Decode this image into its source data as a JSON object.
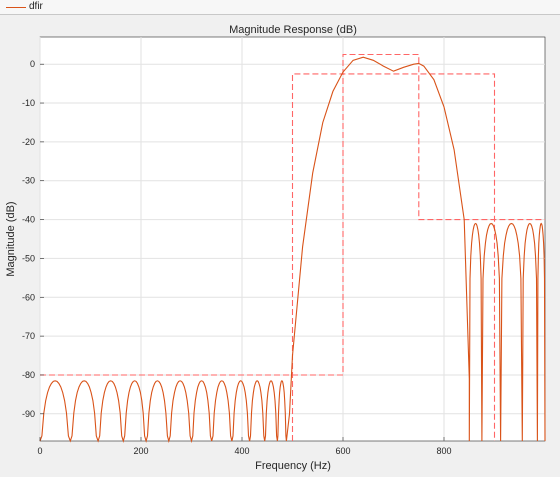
{
  "legend": {
    "entries": [
      {
        "label": "dfir",
        "color": "#d95319"
      }
    ]
  },
  "chart_data": {
    "type": "line",
    "title": "Magnitude Response (dB)",
    "xlabel": "Frequency (Hz)",
    "ylabel": "Magnitude (dB)",
    "xlim": [
      0,
      1000
    ],
    "ylim": [
      -97,
      7
    ],
    "xticks": [
      0,
      200,
      400,
      600,
      800
    ],
    "yticks": [
      0,
      -10,
      -20,
      -30,
      -40,
      -50,
      -60,
      -70,
      -80,
      -90
    ],
    "grid": true,
    "series": [
      {
        "name": "dfir",
        "color": "#d95319",
        "notes": "FIR bandpass magnitude response; stopband ripple ~-82 dB below 500 Hz, passband 600-750 Hz near 0 dB, stopband ~-41 dB above 850 Hz",
        "stopband1_nulls_hz": [
          0,
          60,
          115,
          165,
          210,
          255,
          300,
          340,
          380,
          415,
          445,
          470,
          488
        ],
        "stopband1_peak_db": -81.5,
        "transition_points": [
          [
            494,
            -90
          ],
          [
            500,
            -75
          ],
          [
            520,
            -47
          ],
          [
            540,
            -28
          ],
          [
            560,
            -15
          ],
          [
            580,
            -7
          ],
          [
            600,
            -2
          ],
          [
            620,
            1
          ],
          [
            640,
            1.8
          ],
          [
            660,
            1
          ],
          [
            680,
            -0.5
          ],
          [
            700,
            -1.8
          ],
          [
            720,
            -0.8
          ],
          [
            740,
            0
          ],
          [
            750,
            0.2
          ],
          [
            760,
            -0.5
          ],
          [
            780,
            -4
          ],
          [
            800,
            -11
          ],
          [
            820,
            -22
          ],
          [
            840,
            -40
          ],
          [
            850,
            -81
          ]
        ],
        "stopband2_nulls_hz": [
          850,
          875,
          912,
          955,
          985
        ],
        "stopband2_peak_db": -41
      },
      {
        "name": "mask",
        "color": "#ff6666",
        "style": "dashed",
        "segments": [
          [
            [
              0,
              -80
            ],
            [
              600,
              -80
            ],
            [
              600,
              2.5
            ],
            [
              750,
              2.5
            ],
            [
              750,
              -40
            ],
            [
              1000,
              -40
            ]
          ],
          [
            [
              500,
              -97
            ],
            [
              500,
              -2.5
            ],
            [
              900,
              -2.5
            ],
            [
              900,
              -97
            ]
          ]
        ]
      }
    ]
  }
}
